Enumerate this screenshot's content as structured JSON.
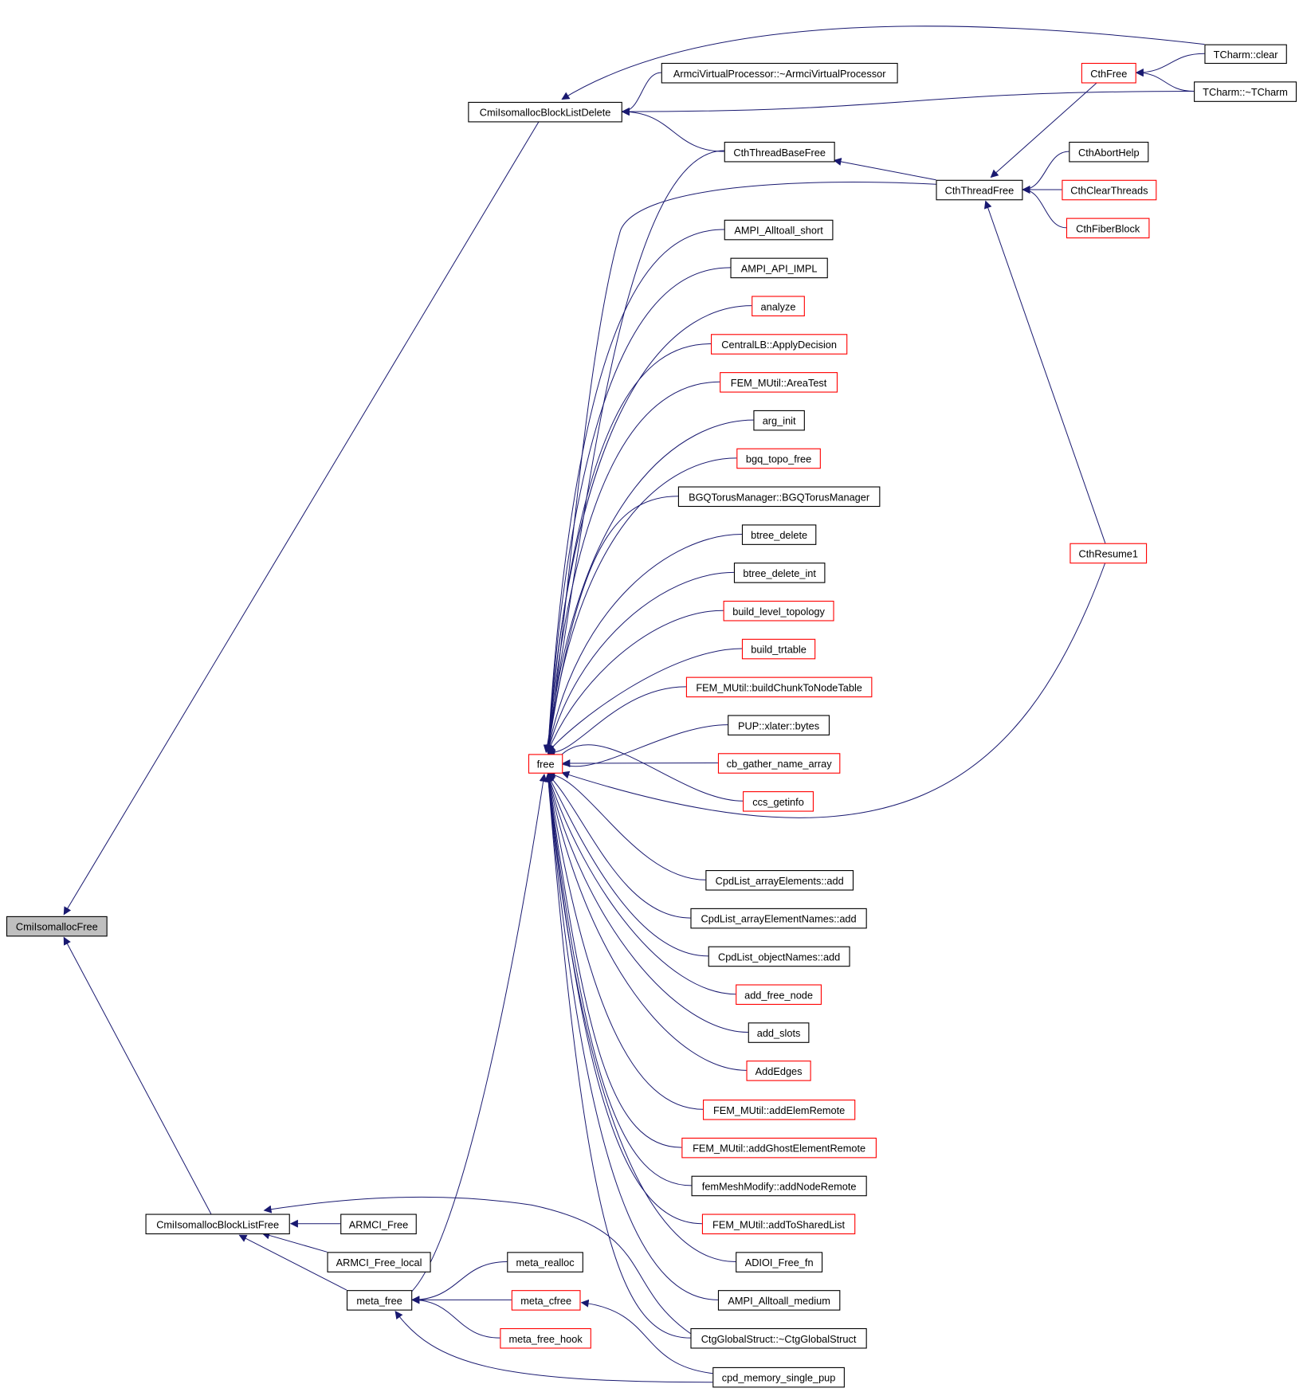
{
  "colors": {
    "edge": "#191970",
    "red_border": "#ff0000",
    "black_border": "#000000",
    "root_fill": "#bfbfbf"
  },
  "nodes": [
    {
      "id": "root",
      "label": "CmiIsomallocFree",
      "style": "root"
    },
    {
      "id": "bld",
      "label": "CmiIsomallocBlockListDelete",
      "style": "black"
    },
    {
      "id": "blf",
      "label": "CmiIsomallocBlockListFree",
      "style": "black"
    },
    {
      "id": "tclear",
      "label": "TCharm::clear",
      "style": "black"
    },
    {
      "id": "tdtor",
      "label": "TCharm::~TCharm",
      "style": "black"
    },
    {
      "id": "cthfree",
      "label": "CthFree",
      "style": "red"
    },
    {
      "id": "armcivp",
      "label": "ArmciVirtualProcessor::~ArmciVirtualProcessor",
      "style": "black"
    },
    {
      "id": "ctbf",
      "label": "CthThreadBaseFree",
      "style": "black"
    },
    {
      "id": "cthabort",
      "label": "CthAbortHelp",
      "style": "black"
    },
    {
      "id": "ctf",
      "label": "CthThreadFree",
      "style": "black"
    },
    {
      "id": "cthclear",
      "label": "CthClearThreads",
      "style": "red"
    },
    {
      "id": "cthfiber",
      "label": "CthFiberBlock",
      "style": "red"
    },
    {
      "id": "ampishort",
      "label": "AMPI_Alltoall_short",
      "style": "black"
    },
    {
      "id": "ampiapi",
      "label": "AMPI_API_IMPL",
      "style": "black"
    },
    {
      "id": "analyze",
      "label": "analyze",
      "style": "red"
    },
    {
      "id": "applydec",
      "label": "CentralLB::ApplyDecision",
      "style": "red"
    },
    {
      "id": "areatest",
      "label": "FEM_MUtil::AreaTest",
      "style": "red"
    },
    {
      "id": "arginit",
      "label": "arg_init",
      "style": "black"
    },
    {
      "id": "bgqtopo",
      "label": "bgq_topo_free",
      "style": "red"
    },
    {
      "id": "bgqtorus",
      "label": "BGQTorusManager::BGQTorusManager",
      "style": "black"
    },
    {
      "id": "btreedel",
      "label": "btree_delete",
      "style": "black"
    },
    {
      "id": "btreedelint",
      "label": "btree_delete_int",
      "style": "black"
    },
    {
      "id": "buildlevel",
      "label": "build_level_topology",
      "style": "red"
    },
    {
      "id": "buildtrt",
      "label": "build_trtable",
      "style": "red"
    },
    {
      "id": "buildchunk",
      "label": "FEM_MUtil::buildChunkToNodeTable",
      "style": "red"
    },
    {
      "id": "pupbytes",
      "label": "PUP::xlater::bytes",
      "style": "black"
    },
    {
      "id": "cbgather",
      "label": "cb_gather_name_array",
      "style": "red"
    },
    {
      "id": "cthresume",
      "label": "CthResume1",
      "style": "red"
    },
    {
      "id": "free",
      "label": "free",
      "style": "red"
    },
    {
      "id": "ccsget",
      "label": "ccs_getinfo",
      "style": "red"
    },
    {
      "id": "cpdarr",
      "label": "CpdList_arrayElements::add",
      "style": "black"
    },
    {
      "id": "cpdarrnames",
      "label": "CpdList_arrayElementNames::add",
      "style": "black"
    },
    {
      "id": "cpdobj",
      "label": "CpdList_objectNames::add",
      "style": "black"
    },
    {
      "id": "addfree",
      "label": "add_free_node",
      "style": "red"
    },
    {
      "id": "addslots",
      "label": "add_slots",
      "style": "black"
    },
    {
      "id": "addedges",
      "label": "AddEdges",
      "style": "red"
    },
    {
      "id": "addelem",
      "label": "FEM_MUtil::addElemRemote",
      "style": "red"
    },
    {
      "id": "addghost",
      "label": "FEM_MUtil::addGhostElementRemote",
      "style": "red"
    },
    {
      "id": "addnode",
      "label": "femMeshModify::addNodeRemote",
      "style": "black"
    },
    {
      "id": "addshared",
      "label": "FEM_MUtil::addToSharedList",
      "style": "red"
    },
    {
      "id": "adioi",
      "label": "ADIOI_Free_fn",
      "style": "black"
    },
    {
      "id": "ampimed",
      "label": "AMPI_Alltoall_medium",
      "style": "black"
    },
    {
      "id": "ctg",
      "label": "CtgGlobalStruct::~CtgGlobalStruct",
      "style": "black"
    },
    {
      "id": "cpdmem",
      "label": "cpd_memory_single_pup",
      "style": "black"
    },
    {
      "id": "armcifree",
      "label": "ARMCI_Free",
      "style": "black"
    },
    {
      "id": "armcilocal",
      "label": "ARMCI_Free_local",
      "style": "black"
    },
    {
      "id": "metafree",
      "label": "meta_free",
      "style": "black"
    },
    {
      "id": "metarealloc",
      "label": "meta_realloc",
      "style": "black"
    },
    {
      "id": "metacfree",
      "label": "meta_cfree",
      "style": "red"
    },
    {
      "id": "metahook",
      "label": "meta_free_hook",
      "style": "red"
    }
  ],
  "edges": [
    [
      "bld",
      "root"
    ],
    [
      "blf",
      "root"
    ],
    [
      "tclear",
      "bld"
    ],
    [
      "armcivp",
      "bld"
    ],
    [
      "tdtor",
      "bld"
    ],
    [
      "ctbf",
      "bld"
    ],
    [
      "tclear",
      "cthfree"
    ],
    [
      "tdtor",
      "cthfree"
    ],
    [
      "ctf",
      "ctbf"
    ],
    [
      "cthfree",
      "ctf"
    ],
    [
      "cthabort",
      "ctf"
    ],
    [
      "cthclear",
      "ctf"
    ],
    [
      "cthfiber",
      "ctf"
    ],
    [
      "cthresume",
      "ctf"
    ],
    [
      "ctbf",
      "free"
    ],
    [
      "ctf",
      "free"
    ],
    [
      "ampishort",
      "free"
    ],
    [
      "ampiapi",
      "free"
    ],
    [
      "analyze",
      "free"
    ],
    [
      "applydec",
      "free"
    ],
    [
      "areatest",
      "free"
    ],
    [
      "arginit",
      "free"
    ],
    [
      "bgqtopo",
      "free"
    ],
    [
      "bgqtorus",
      "free"
    ],
    [
      "btreedel",
      "free"
    ],
    [
      "btreedelint",
      "free"
    ],
    [
      "buildlevel",
      "free"
    ],
    [
      "buildtrt",
      "free"
    ],
    [
      "buildchunk",
      "free"
    ],
    [
      "pupbytes",
      "free"
    ],
    [
      "cbgather",
      "free"
    ],
    [
      "ccsget",
      "free"
    ],
    [
      "cthresume",
      "free"
    ],
    [
      "cpdarr",
      "free"
    ],
    [
      "cpdarrnames",
      "free"
    ],
    [
      "cpdobj",
      "free"
    ],
    [
      "addfree",
      "free"
    ],
    [
      "addslots",
      "free"
    ],
    [
      "addedges",
      "free"
    ],
    [
      "addelem",
      "free"
    ],
    [
      "addghost",
      "free"
    ],
    [
      "addnode",
      "free"
    ],
    [
      "addshared",
      "free"
    ],
    [
      "adioi",
      "free"
    ],
    [
      "ampimed",
      "free"
    ],
    [
      "ctg",
      "free"
    ],
    [
      "metafree",
      "free"
    ],
    [
      "armcifree",
      "blf"
    ],
    [
      "armcilocal",
      "blf"
    ],
    [
      "metafree",
      "blf"
    ],
    [
      "ctg",
      "blf"
    ],
    [
      "metarealloc",
      "metafree"
    ],
    [
      "metacfree",
      "metafree"
    ],
    [
      "metahook",
      "metafree"
    ],
    [
      "cpdmem",
      "metafree"
    ],
    [
      "cpdmem",
      "metacfree"
    ]
  ]
}
